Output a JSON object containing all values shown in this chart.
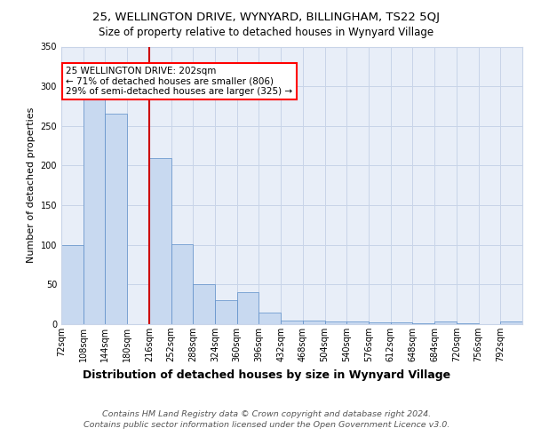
{
  "title1": "25, WELLINGTON DRIVE, WYNYARD, BILLINGHAM, TS22 5QJ",
  "title2": "Size of property relative to detached houses in Wynyard Village",
  "xlabel": "Distribution of detached houses by size in Wynyard Village",
  "ylabel": "Number of detached properties",
  "footnote": "Contains HM Land Registry data © Crown copyright and database right 2024.\nContains public sector information licensed under the Open Government Licence v3.0.",
  "annotation_line1": "25 WELLINGTON DRIVE: 202sqm",
  "annotation_line2": "← 71% of detached houses are smaller (806)",
  "annotation_line3": "29% of semi-detached houses are larger (325) →",
  "bin_labels": [
    "72sqm",
    "108sqm",
    "144sqm",
    "180sqm",
    "216sqm",
    "252sqm",
    "288sqm",
    "324sqm",
    "360sqm",
    "396sqm",
    "432sqm",
    "468sqm",
    "504sqm",
    "540sqm",
    "576sqm",
    "612sqm",
    "648sqm",
    "684sqm",
    "720sqm",
    "756sqm",
    "792sqm"
  ],
  "bin_edges": [
    72,
    108,
    144,
    180,
    216,
    252,
    288,
    324,
    360,
    396,
    432,
    468,
    504,
    540,
    576,
    612,
    648,
    684,
    720,
    756,
    792
  ],
  "bar_values": [
    100,
    288,
    265,
    0,
    210,
    101,
    50,
    30,
    40,
    15,
    5,
    5,
    3,
    3,
    2,
    2,
    1,
    3,
    1,
    0,
    3
  ],
  "bar_color": "#c8d9f0",
  "bar_edge_color": "#5b8dc8",
  "vline_x": 216,
  "vline_color": "#cc0000",
  "grid_color": "#c8d4e8",
  "bg_color": "#e8eef8",
  "ylim": [
    0,
    350
  ],
  "yticks": [
    0,
    50,
    100,
    150,
    200,
    250,
    300,
    350
  ],
  "title1_fontsize": 9.5,
  "title2_fontsize": 8.5,
  "xlabel_fontsize": 9,
  "ylabel_fontsize": 8,
  "tick_fontsize": 7,
  "footnote_fontsize": 6.8,
  "annot_fontsize": 7.5
}
